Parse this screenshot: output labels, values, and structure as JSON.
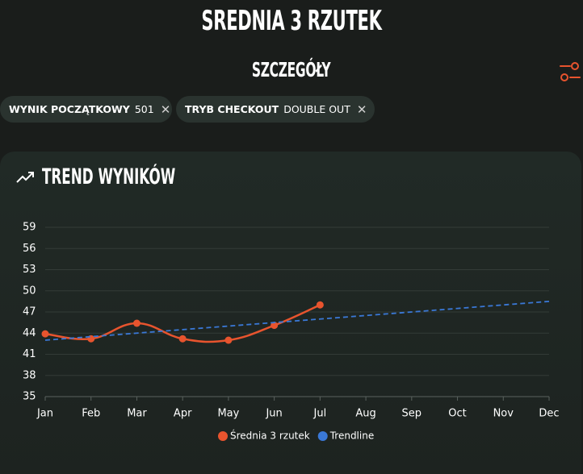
{
  "header": {
    "title": "SREDNIA 3 RZUTEK",
    "subtitle": "SZCZEGÓŁY"
  },
  "filters": [
    {
      "label": "WYNIK POCZĄTKOWY",
      "value": "501"
    },
    {
      "label": "TRYB CHECKOUT",
      "value": "DOUBLE OUT"
    }
  ],
  "chart_data": {
    "type": "line",
    "title": "TREND WYNIKÓW",
    "categories": [
      "Jan",
      "Feb",
      "Mar",
      "Apr",
      "May",
      "Jun",
      "Jul",
      "Aug",
      "Sep",
      "Oct",
      "Nov",
      "Dec"
    ],
    "series": [
      {
        "name": "Średnia 3 rzutek",
        "color": "#e8542e",
        "values": [
          43.9,
          43.2,
          45.4,
          43.2,
          43.0,
          45.1,
          48.0,
          null,
          null,
          null,
          null,
          null
        ]
      },
      {
        "name": "Trendline",
        "color": "#3a78d6",
        "values": [
          43.0,
          43.5,
          44.0,
          44.5,
          45.0,
          45.5,
          46.0,
          46.5,
          47.0,
          47.5,
          48.0,
          48.5
        ]
      }
    ],
    "ylim": [
      35,
      59
    ],
    "yticks": [
      35,
      38,
      41,
      44,
      47,
      50,
      53,
      56,
      59
    ],
    "grid": true,
    "legend": "bottom"
  }
}
